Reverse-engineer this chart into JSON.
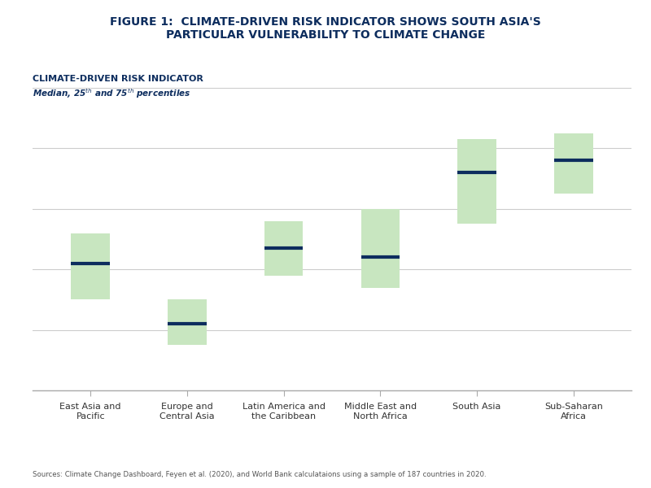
{
  "title_line1": "FIGURE 1: CLIMATE-DRIVEN RISK INDICATOR SHOWS SOUTH ASIA'S",
  "title_line2": "PARTICULAR VULNERABILITY TO CLIMATE CHANGE",
  "ylabel_main": "CLIMATE-DRIVEN RISK INDICATOR",
  "ylabel_sub": "Median, 25th and 75th percentiles",
  "source": "Sources: Climate Change Dashboard, Feyen et al. (2020), and World Bank calculataions using a sample of 187 countries in 2020.",
  "categories": [
    "East Asia and\nPacific",
    "Europe and\nCentral Asia",
    "Latin America and\nthe Caribbean",
    "Middle East and\nNorth Africa",
    "South Asia",
    "Sub-Saharan\nAfrica"
  ],
  "medians": [
    0.42,
    0.22,
    0.47,
    0.44,
    0.72,
    0.76
  ],
  "q25": [
    0.3,
    0.15,
    0.38,
    0.34,
    0.55,
    0.65
  ],
  "q75": [
    0.52,
    0.3,
    0.56,
    0.6,
    0.83,
    0.85
  ],
  "box_color": "#c8e6c0",
  "median_color": "#0d2d5e",
  "title_bg": "#e8e8e8",
  "title_color": "#0d2d5e",
  "grid_color": "#cccccc",
  "background_color": "#ffffff",
  "ylim": [
    0.0,
    1.0
  ],
  "box_width": 0.4
}
